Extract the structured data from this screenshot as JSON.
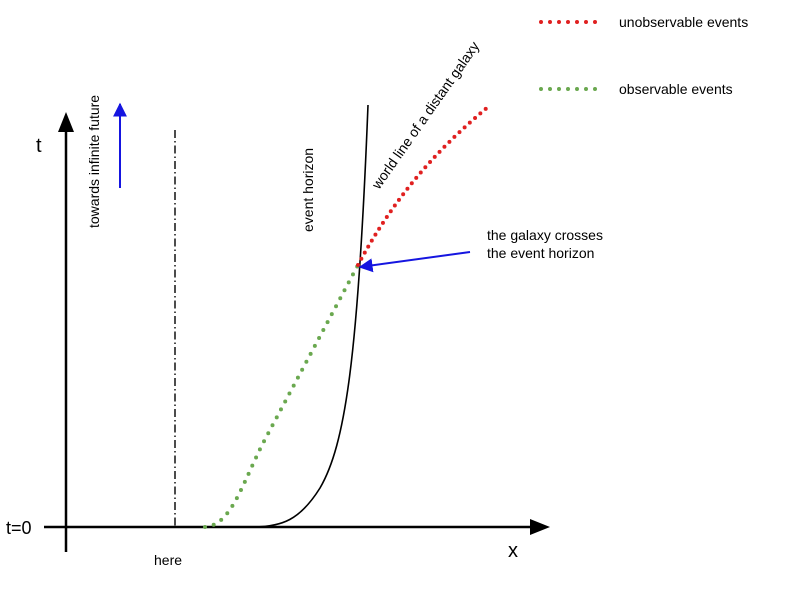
{
  "axes": {
    "x_label": "x",
    "t_label": "t",
    "t_zero_label": "t=0"
  },
  "labels": {
    "here": "here",
    "event_horizon": "event horizon",
    "world_line": "world line of a distant galaxy",
    "towards_future": "towards infinite future",
    "crossing_line1": "the galaxy crosses",
    "crossing_line2": "the event horizon"
  },
  "legend": {
    "unobservable": "unobservable events",
    "observable": "observable events"
  },
  "colors": {
    "axis": "#000000",
    "curve": "#000000",
    "observable": "#6aa84f",
    "unobservable": "#e02020",
    "arrow": "#1515e0"
  }
}
